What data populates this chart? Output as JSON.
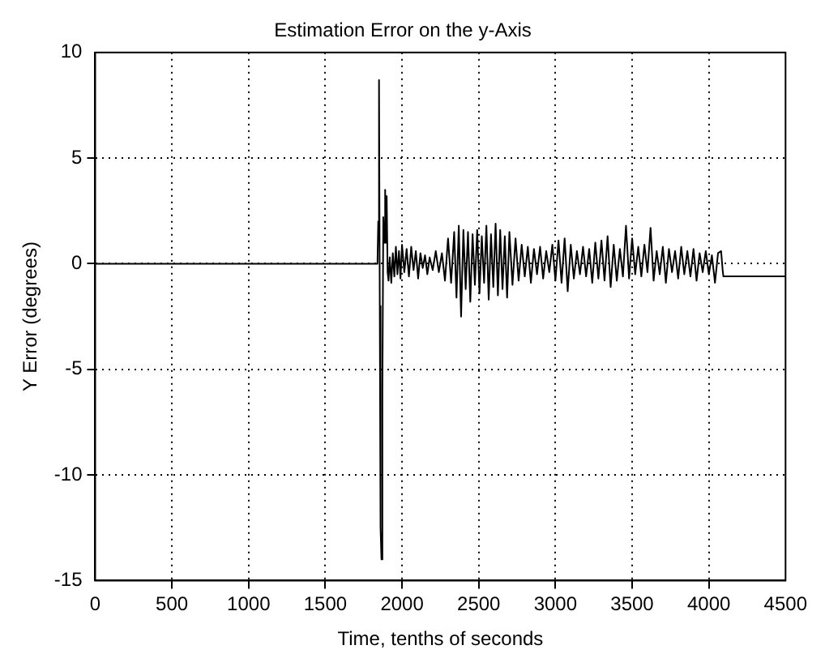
{
  "chart_data": {
    "type": "line",
    "title": "Estimation Error on the y-Axis",
    "xlabel": "Time, tenths of seconds",
    "ylabel": "Y Error (degrees)",
    "xlim": [
      0,
      4500
    ],
    "ylim": [
      -15,
      10
    ],
    "xticks": [
      0,
      500,
      1000,
      1500,
      2000,
      2500,
      3000,
      3500,
      4000,
      4500
    ],
    "yticks": [
      -15,
      -10,
      -5,
      0,
      5,
      10
    ],
    "grid": true,
    "legend": false,
    "line_style": "solid",
    "marker": "none",
    "series": [
      {
        "color": "#000000",
        "x": [
          0,
          1840,
          1845,
          1850,
          1855,
          1860,
          1866,
          1872,
          1878,
          1884,
          1890,
          1895,
          1900,
          1906,
          1912,
          1920,
          1930,
          1940,
          1950,
          1960,
          1970,
          1980,
          1990,
          2000,
          2015,
          2030,
          2045,
          2060,
          2075,
          2090,
          2105,
          2120,
          2135,
          2150,
          2165,
          2180,
          2200,
          2220,
          2240,
          2260,
          2280,
          2300,
          2320,
          2340,
          2355,
          2370,
          2385,
          2400,
          2415,
          2430,
          2445,
          2460,
          2475,
          2490,
          2505,
          2520,
          2535,
          2550,
          2565,
          2580,
          2595,
          2610,
          2625,
          2640,
          2655,
          2670,
          2685,
          2700,
          2720,
          2740,
          2760,
          2780,
          2800,
          2820,
          2840,
          2860,
          2880,
          2900,
          2920,
          2940,
          2960,
          2980,
          3000,
          3020,
          3040,
          3060,
          3080,
          3100,
          3120,
          3140,
          3160,
          3180,
          3200,
          3220,
          3240,
          3260,
          3280,
          3300,
          3320,
          3340,
          3360,
          3380,
          3400,
          3420,
          3440,
          3460,
          3480,
          3500,
          3520,
          3540,
          3560,
          3580,
          3600,
          3620,
          3640,
          3660,
          3680,
          3700,
          3720,
          3740,
          3760,
          3780,
          3800,
          3820,
          3840,
          3860,
          3880,
          3900,
          3920,
          3940,
          3960,
          3980,
          4000,
          4020,
          4040,
          4060,
          4080,
          4090,
          4095,
          4100,
          4500
        ],
        "values": [
          0,
          0,
          2,
          8.7,
          -2,
          -12.5,
          -14,
          -6,
          2.2,
          1,
          3.5,
          1,
          3.2,
          -0.4,
          -0.8,
          0.3,
          -0.9,
          0.5,
          -0.6,
          0.8,
          -0.5,
          0.6,
          -0.7,
          0.9,
          -0.4,
          0.7,
          -0.6,
          0.8,
          -0.3,
          0.6,
          -0.7,
          0.5,
          -0.2,
          0.4,
          -0.5,
          0.3,
          -0.3,
          0.6,
          -0.4,
          0.5,
          -0.8,
          1.2,
          -0.9,
          1.5,
          -1.6,
          1.8,
          -2.5,
          1.6,
          -1.2,
          1.5,
          -1.8,
          1.4,
          -1,
          1.6,
          -1.4,
          1.3,
          -0.9,
          1.8,
          -1.7,
          1.4,
          -1.1,
          1.9,
          -1.5,
          1.6,
          -1.2,
          1.3,
          -1.6,
          1.5,
          -1,
          1.2,
          -0.8,
          0.9,
          -0.6,
          0.8,
          -0.9,
          0.7,
          -0.5,
          0.8,
          -0.7,
          0.6,
          -0.4,
          0.9,
          -0.8,
          1.1,
          -0.9,
          1.2,
          -1.3,
          0.9,
          -0.7,
          0.6,
          -0.5,
          0.8,
          -0.6,
          0.7,
          -0.9,
          1,
          -0.7,
          1.1,
          -0.8,
          1.3,
          -1.1,
          0.9,
          -0.8,
          0.7,
          -0.6,
          1.8,
          -0.7,
          1.2,
          -0.5,
          0.8,
          -0.6,
          0.9,
          -0.4,
          1.7,
          -0.8,
          0.6,
          -0.5,
          0.8,
          -0.9,
          0.7,
          -0.4,
          0.6,
          -0.7,
          0.8,
          -0.5,
          0.6,
          -0.6,
          0.7,
          -0.8,
          0.5,
          -0.4,
          0.6,
          -0.5,
          0.4,
          -0.9,
          0.5,
          0.6,
          -0.3,
          -0.6,
          -0.6,
          -0.6
        ]
      }
    ]
  }
}
